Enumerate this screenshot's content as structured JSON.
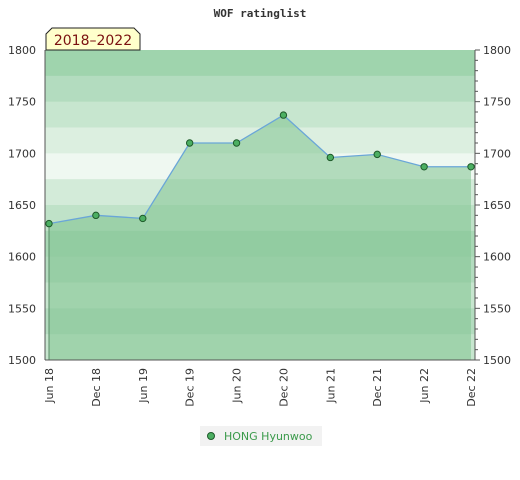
{
  "chart_data": {
    "type": "area",
    "title": "WOF ratinglist",
    "period_label": "2018–2022",
    "x": [
      "2018-06",
      "2018-12",
      "2019-06",
      "2019-12",
      "2020-06",
      "2020-12",
      "2021-06",
      "2021-12",
      "2022-06",
      "2022-12"
    ],
    "x_tick_labels": [
      "Jun 18",
      "Dec 18",
      "Jun 19",
      "Dec 19",
      "Jun 20",
      "Dec 20",
      "Jun 21",
      "Dec 21",
      "Jun 22",
      "Dec 22"
    ],
    "series": [
      {
        "name": "HONG Hyunwoo",
        "values": [
          1632,
          1640,
          1637,
          1710,
          1710,
          1737,
          1696,
          1699,
          1687,
          1687
        ]
      }
    ],
    "ylim": [
      1500,
      1800
    ],
    "y_ticks": [
      1500,
      1550,
      1600,
      1650,
      1700,
      1750,
      1800
    ],
    "xlabel": "",
    "ylabel": "",
    "grid": false,
    "legend_position": "bottom-center",
    "colors": {
      "line": "#6aa6d8",
      "fill": "#7fc38f",
      "marker": "#4caf62",
      "marker_stroke": "#1e5a2a",
      "badge_bg": "#ffffcc",
      "badge_text": "#7a1010"
    }
  }
}
